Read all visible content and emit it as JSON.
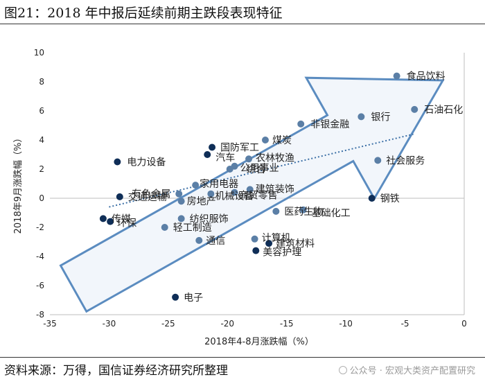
{
  "figure": {
    "title": "图21：2018 年中报后延续前期主跌段表现特征",
    "source": "资料来源：万得，国信证券经济研究所整理",
    "watermark": "公众号 · 宏观大类资产配置研究"
  },
  "chart_data": {
    "type": "scatter",
    "xlabel": "2018年4-8月涨跌幅（%）",
    "ylabel": "2018年9月涨跌幅（%）",
    "xlim": [
      -35,
      0
    ],
    "ylim": [
      -8,
      10
    ],
    "xticks": [
      -35,
      -30,
      -25,
      -20,
      -15,
      -10,
      -5,
      0
    ],
    "yticks": [
      -8,
      -6,
      -4,
      -2,
      0,
      2,
      4,
      6,
      8,
      10
    ],
    "trendline": {
      "style": "dotted",
      "from": [
        -30,
        -0.6
      ],
      "to": [
        -4.3,
        4.4
      ]
    },
    "annotation": {
      "shape": "arrow",
      "direction": "upper-right"
    },
    "colors": {
      "light": "#5b7fa6",
      "dark": "#0f2e57",
      "arrow": "#5b8cc0",
      "arrow_fill": "#e8eff7",
      "trend": "#3a6ea5"
    },
    "points": [
      {
        "label": "食品饮料",
        "x": -5.7,
        "y": 8.4,
        "color": "light"
      },
      {
        "label": "石油石化",
        "x": -4.2,
        "y": 6.1,
        "color": "light"
      },
      {
        "label": "银行",
        "x": -8.7,
        "y": 5.6,
        "color": "light"
      },
      {
        "label": "非银金融",
        "x": -13.8,
        "y": 5.1,
        "color": "light"
      },
      {
        "label": "煤炭",
        "x": -16.8,
        "y": 4.0,
        "color": "light"
      },
      {
        "label": "国防军工",
        "x": -21.3,
        "y": 3.5,
        "color": "dark"
      },
      {
        "label": "汽车",
        "x": -21.7,
        "y": 3.0,
        "color": "dark"
      },
      {
        "label": "农林牧渔",
        "x": -18.2,
        "y": 2.7,
        "color": "light"
      },
      {
        "label": "社会服务",
        "x": -7.3,
        "y": 2.6,
        "color": "light"
      },
      {
        "label": "电力设备",
        "x": -29.3,
        "y": 2.5,
        "color": "dark"
      },
      {
        "label": "公用事业",
        "x": -19.4,
        "y": 2.2,
        "color": "light"
      },
      {
        "label": "综合",
        "x": -19.8,
        "y": 2.0,
        "color": "light"
      },
      {
        "label": "家用电器",
        "x": -22.7,
        "y": 0.9,
        "color": "light"
      },
      {
        "label": "建筑装饰",
        "x": -18.1,
        "y": 0.6,
        "color": "light"
      },
      {
        "label": "商贸零售",
        "x": -19.4,
        "y": 0.4,
        "color": "light"
      },
      {
        "label": "机械设备",
        "x": -21.4,
        "y": 0.3,
        "color": "light"
      },
      {
        "label": "有色金属",
        "x": -24.1,
        "y": 0.3,
        "color": "light"
      },
      {
        "label": "钢铁",
        "x": -7.8,
        "y": 0.0,
        "color": "dark"
      },
      {
        "label": "交通运输",
        "x": -29.1,
        "y": 0.1,
        "color": "dark"
      },
      {
        "label": "房地产",
        "x": -23.9,
        "y": -0.2,
        "color": "light"
      },
      {
        "label": "基础化工",
        "x": -13.6,
        "y": -0.8,
        "color": "light"
      },
      {
        "label": "医药生物",
        "x": -15.9,
        "y": -0.9,
        "color": "light"
      },
      {
        "label": "传媒",
        "x": -30.5,
        "y": -1.4,
        "color": "dark"
      },
      {
        "label": "纺织服饰",
        "x": -23.9,
        "y": -1.4,
        "color": "light"
      },
      {
        "label": "环保",
        "x": -29.9,
        "y": -1.6,
        "color": "dark"
      },
      {
        "label": "轻工制造",
        "x": -25.3,
        "y": -2.0,
        "color": "light"
      },
      {
        "label": "计算机",
        "x": -17.7,
        "y": -2.8,
        "color": "light"
      },
      {
        "label": "通信",
        "x": -22.4,
        "y": -2.9,
        "color": "light"
      },
      {
        "label": "建筑材料",
        "x": -16.5,
        "y": -3.1,
        "color": "dark"
      },
      {
        "label": "美容护理",
        "x": -17.6,
        "y": -3.6,
        "color": "dark"
      },
      {
        "label": "电子",
        "x": -24.4,
        "y": -6.8,
        "color": "dark"
      }
    ]
  }
}
